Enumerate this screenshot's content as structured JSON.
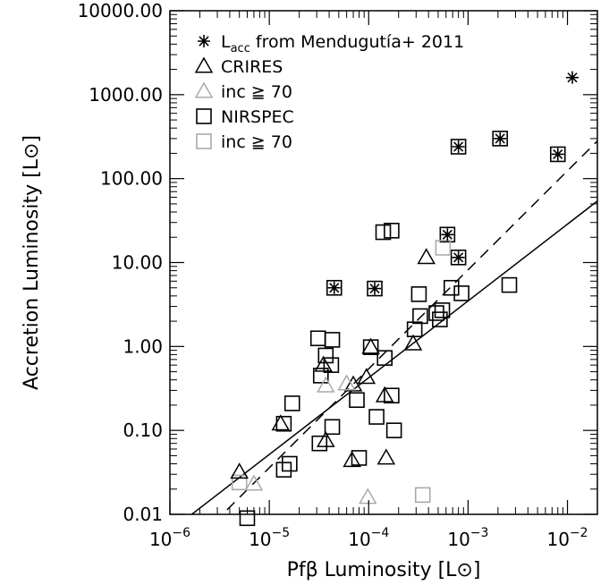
{
  "chart_data": {
    "type": "scatter",
    "xlabel": "Pfβ Luminosity [L⊙]",
    "ylabel": "Accretion Luminosity [L⊙]",
    "xscale": "log",
    "yscale": "log",
    "xlim": [
      1e-06,
      0.02
    ],
    "ylim": [
      0.01,
      10000
    ],
    "x_ticks": [
      {
        "value": 1e-06,
        "base": "10",
        "exp": "−6"
      },
      {
        "value": 1e-05,
        "base": "10",
        "exp": "−5"
      },
      {
        "value": 0.0001,
        "base": "10",
        "exp": "−4"
      },
      {
        "value": 0.001,
        "base": "10",
        "exp": "−3"
      },
      {
        "value": 0.01,
        "base": "10",
        "exp": "−2"
      }
    ],
    "y_ticks": [
      {
        "value": 0.01,
        "label": "0.01"
      },
      {
        "value": 0.1,
        "label": "0.10"
      },
      {
        "value": 1,
        "label": "1.00"
      },
      {
        "value": 10,
        "label": "10.00"
      },
      {
        "value": 100,
        "label": "100.00"
      },
      {
        "value": 1000,
        "label": "1000.00"
      },
      {
        "value": 10000,
        "label": "10000.00"
      }
    ],
    "legend": {
      "position": "top-left",
      "entries": [
        {
          "marker": "asterisk",
          "color": "#000000",
          "text_main": "L",
          "text_sub": "acc",
          "text_rest": " from Mendugutía+ 2011"
        },
        {
          "marker": "triangle",
          "color": "#000000",
          "text": "CRIRES"
        },
        {
          "marker": "triangle",
          "color": "#aaaaaa",
          "text": "inc ≧ 70"
        },
        {
          "marker": "square",
          "color": "#000000",
          "text": "NIRSPEC"
        },
        {
          "marker": "square",
          "color": "#aaaaaa",
          "text": "inc ≧ 70"
        }
      ]
    },
    "series": [
      {
        "marker": "square",
        "color": "#000000",
        "points": [
          [
            4.5e-05,
            5.0
          ],
          [
            0.000115,
            4.9
          ],
          [
            0.00062,
            21.5
          ],
          [
            0.0008,
            11.5
          ],
          [
            0.0008,
            240
          ],
          [
            0.0021,
            300
          ],
          [
            0.008,
            195
          ],
          [
            0.00014,
            23
          ],
          [
            0.00017,
            24
          ],
          [
            0.00032,
            4.2
          ],
          [
            0.00068,
            5.0
          ],
          [
            0.00086,
            4.3
          ],
          [
            0.0026,
            5.4
          ],
          [
            0.00033,
            2.3
          ],
          [
            0.00048,
            2.5
          ],
          [
            0.00055,
            2.7
          ],
          [
            0.00052,
            2.1
          ],
          [
            0.00029,
            1.6
          ],
          [
            3.1e-05,
            1.25
          ],
          [
            4.3e-05,
            1.2
          ],
          [
            3.7e-05,
            0.78
          ],
          [
            4.2e-05,
            0.6
          ],
          [
            3.3e-05,
            0.45
          ],
          [
            0.000105,
            0.98
          ],
          [
            0.000145,
            0.73
          ],
          [
            7.6e-05,
            0.23
          ],
          [
            0.00017,
            0.26
          ],
          [
            1.7e-05,
            0.21
          ],
          [
            4.3e-05,
            0.11
          ],
          [
            1.4e-05,
            0.12
          ],
          [
            0.00012,
            0.145
          ],
          [
            0.00018,
            0.1
          ],
          [
            3.2e-05,
            0.07
          ],
          [
            8e-05,
            0.047
          ],
          [
            1.6e-05,
            0.04
          ],
          [
            1.4e-05,
            0.034
          ],
          [
            6e-06,
            0.009
          ]
        ]
      },
      {
        "marker": "square",
        "color": "#aaaaaa",
        "points": [
          [
            0.00035,
            0.017
          ],
          [
            0.00056,
            15
          ],
          [
            5e-06,
            0.024
          ]
        ]
      },
      {
        "marker": "triangle",
        "color": "#000000",
        "points": [
          [
            5e-06,
            0.032
          ],
          [
            1.3e-05,
            0.12
          ],
          [
            3.7e-05,
            0.076
          ],
          [
            6.8e-05,
            0.044
          ],
          [
            0.00015,
            0.047
          ],
          [
            3.5e-05,
            0.6
          ],
          [
            9.5e-05,
            0.43
          ],
          [
            7e-05,
            0.35
          ],
          [
            0.000105,
            0.98
          ],
          [
            0.000145,
            0.26
          ],
          [
            0.00028,
            1.08
          ],
          [
            0.00038,
            11.5
          ]
        ]
      },
      {
        "marker": "triangle",
        "color": "#aaaaaa",
        "points": [
          [
            7e-06,
            0.023
          ],
          [
            3.7e-05,
            0.34
          ],
          [
            6e-05,
            0.36
          ],
          [
            9.8e-05,
            0.016
          ]
        ]
      },
      {
        "marker": "asterisk",
        "color": "#000000",
        "points": [
          [
            4.5e-05,
            5.0
          ],
          [
            0.000115,
            4.9
          ],
          [
            0.00062,
            21.5
          ],
          [
            0.0008,
            11.5
          ],
          [
            0.0008,
            240
          ],
          [
            0.0021,
            300
          ],
          [
            0.008,
            195
          ],
          [
            0.0112,
            1600
          ]
        ]
      }
    ],
    "fit_lines": [
      {
        "style": "solid",
        "color": "#000000",
        "from": [
          1.3e-06,
          0.008
        ],
        "to": [
          0.02,
          54
        ]
      },
      {
        "style": "dashed",
        "color": "#000000",
        "from": [
          2.8e-06,
          0.008
        ],
        "to": [
          0.02,
          280
        ]
      }
    ]
  }
}
